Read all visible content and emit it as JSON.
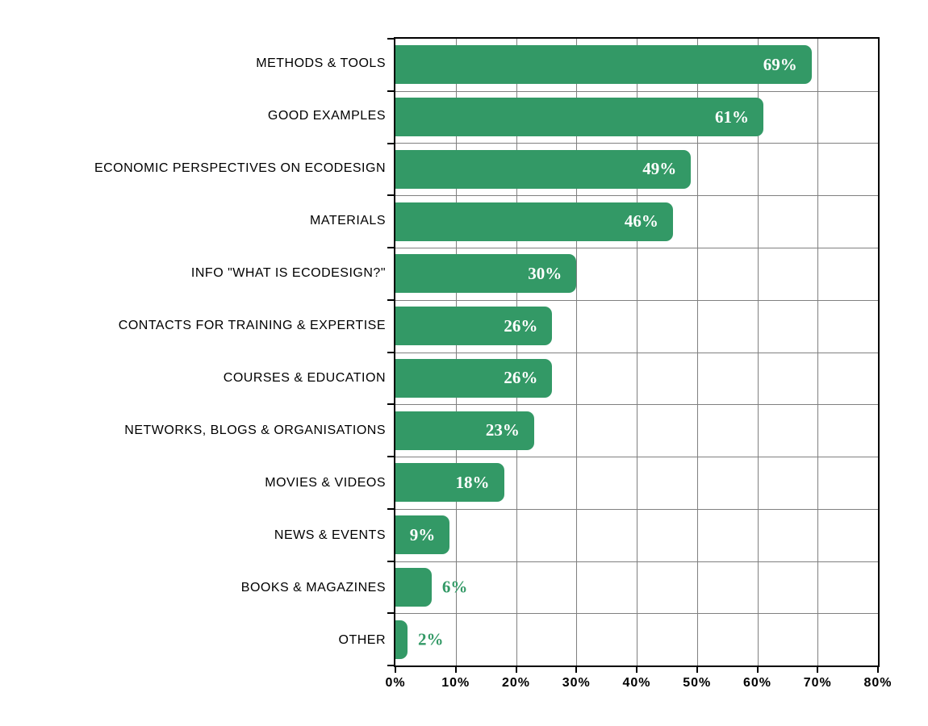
{
  "chart_data": {
    "type": "bar",
    "orientation": "horizontal",
    "title": "",
    "xlabel": "",
    "ylabel": "",
    "xlim": [
      0,
      80
    ],
    "x_tick_step": 10,
    "grid": true,
    "legend": false,
    "categories": [
      "METHODS & TOOLS",
      "GOOD EXAMPLES",
      "ECONOMIC PERSPECTIVES ON ECODESIGN",
      "MATERIALS",
      "INFO \"WHAT IS ECODESIGN?\"",
      "CONTACTS FOR TRAINING & EXPERTISE",
      "COURSES & EDUCATION",
      "NETWORKS, BLOGS & ORGANISATIONS",
      "MOVIES & VIDEOS",
      "NEWS & EVENTS",
      "BOOKS & MAGAZINES",
      "OTHER"
    ],
    "values": [
      69,
      61,
      49,
      46,
      30,
      26,
      26,
      23,
      18,
      9,
      6,
      2
    ],
    "value_labels": [
      "69%",
      "61%",
      "49%",
      "46%",
      "30%",
      "26%",
      "26%",
      "23%",
      "18%",
      "9%",
      "6%",
      "2%"
    ],
    "label_inside": [
      true,
      true,
      true,
      true,
      true,
      true,
      true,
      true,
      true,
      true,
      false,
      false
    ],
    "x_ticks": [
      "0%",
      "10%",
      "20%",
      "30%",
      "40%",
      "50%",
      "60%",
      "70%",
      "80%"
    ],
    "colors": {
      "bar": "#339966",
      "value_label_inside": "#ffffff",
      "value_label_outside": "#339966",
      "gridline": "#808080",
      "axis": "#000000",
      "text": "#000000",
      "background": "#ffffff"
    }
  }
}
